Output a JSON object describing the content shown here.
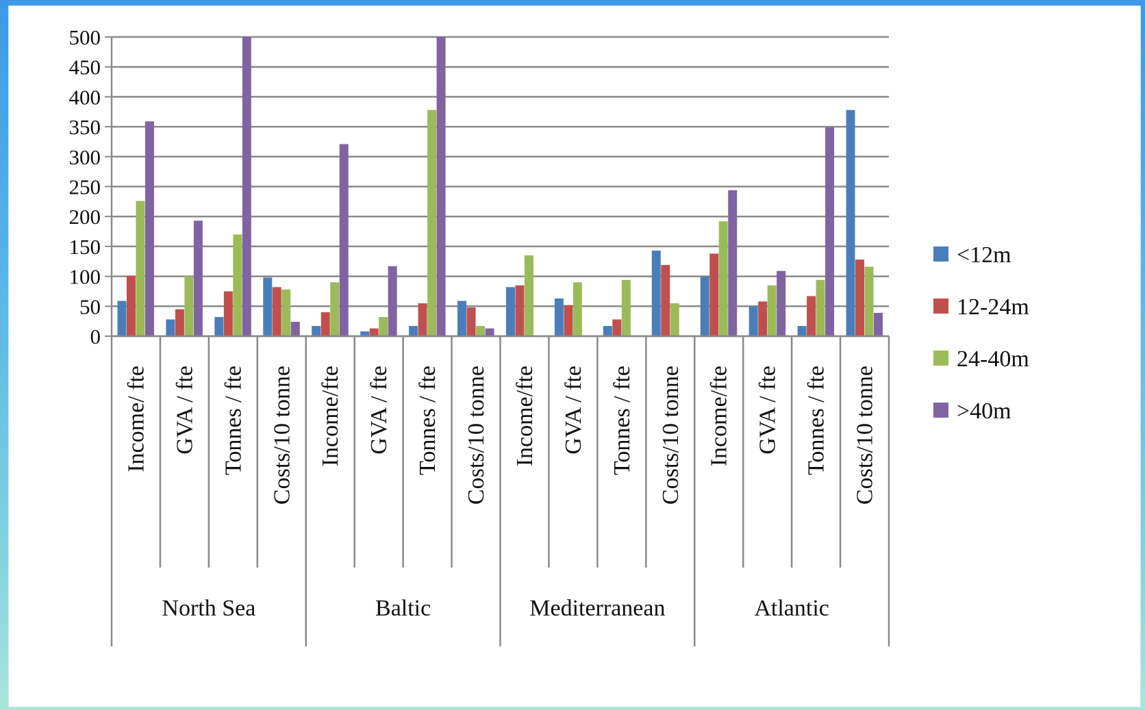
{
  "chart_data": {
    "type": "bar",
    "ylim": [
      0,
      500
    ],
    "yticks": [
      0,
      50,
      100,
      150,
      200,
      250,
      300,
      350,
      400,
      450,
      500
    ],
    "grid": true,
    "legend_position": "right",
    "groups": [
      {
        "name": "North Sea",
        "categories": [
          "Income/ fte",
          "GVA / fte",
          "Tonnes / fte",
          "Costs/10 tonne"
        ]
      },
      {
        "name": "Baltic",
        "categories": [
          "Income/fte",
          "GVA / fte",
          "Tonnes / fte",
          "Costs/10 tonne"
        ]
      },
      {
        "name": "Mediterranean",
        "categories": [
          "Income/fte",
          "GVA / fte",
          "Tonnes / fte",
          "Costs/10 tonne"
        ]
      },
      {
        "name": "Atlantic",
        "categories": [
          "Income/fte",
          "GVA / fte",
          "Tonnes / fte",
          "Costs/10 tonne"
        ]
      }
    ],
    "series": [
      {
        "name": "<12m",
        "color": "#4a7ebb",
        "values": [
          59,
          28,
          32,
          98,
          17,
          8,
          17,
          59,
          82,
          63,
          17,
          143,
          100,
          50,
          17,
          378
        ]
      },
      {
        "name": "12-24m",
        "color": "#c0504d",
        "values": [
          101,
          45,
          75,
          82,
          40,
          13,
          55,
          48,
          85,
          52,
          28,
          119,
          138,
          58,
          67,
          128
        ]
      },
      {
        "name": "24-40m",
        "color": "#9bbb59",
        "values": [
          226,
          100,
          170,
          78,
          90,
          32,
          378,
          17,
          135,
          90,
          94,
          55,
          192,
          85,
          94,
          116
        ]
      },
      {
        "name": ">40m",
        "color": "#8064a2",
        "values": [
          359,
          193,
          500,
          24,
          321,
          117,
          500,
          13,
          null,
          null,
          null,
          null,
          244,
          109,
          349,
          39
        ]
      }
    ]
  }
}
